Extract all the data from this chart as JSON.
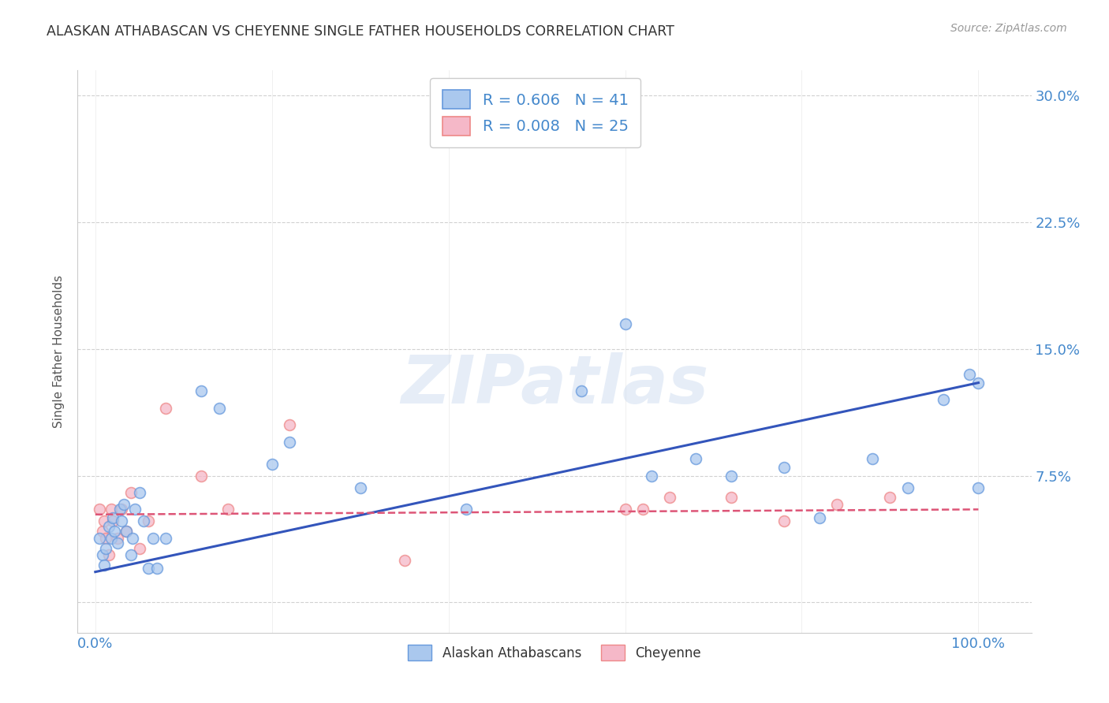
{
  "title": "ALASKAN ATHABASCAN VS CHEYENNE SINGLE FATHER HOUSEHOLDS CORRELATION CHART",
  "source": "Source: ZipAtlas.com",
  "ylabel": "Single Father Households",
  "yticks": [
    0.0,
    0.075,
    0.15,
    0.225,
    0.3
  ],
  "ytick_labels": [
    "",
    "7.5%",
    "15.0%",
    "22.5%",
    "30.0%"
  ],
  "xticks": [
    0.0,
    0.2,
    0.4,
    0.6,
    0.8,
    1.0
  ],
  "xtick_labels": [
    "0.0%",
    "",
    "",
    "",
    "",
    "100.0%"
  ],
  "xlim": [
    -0.02,
    1.06
  ],
  "ylim": [
    -0.018,
    0.315
  ],
  "legend_R1": "R = 0.606",
  "legend_N1": "N = 41",
  "legend_R2": "R = 0.008",
  "legend_N2": "N = 25",
  "blue_color": "#aac8ee",
  "pink_color": "#f5b8c8",
  "blue_edge_color": "#6699dd",
  "pink_edge_color": "#ee8888",
  "blue_line_color": "#3355bb",
  "pink_line_color": "#dd5577",
  "grid_color": "#cccccc",
  "background_color": "#ffffff",
  "title_color": "#333333",
  "axis_label_color": "#4488cc",
  "blue_scatter_x": [
    0.005,
    0.008,
    0.01,
    0.012,
    0.015,
    0.018,
    0.02,
    0.022,
    0.025,
    0.028,
    0.03,
    0.032,
    0.035,
    0.04,
    0.042,
    0.045,
    0.05,
    0.055,
    0.06,
    0.065,
    0.07,
    0.08,
    0.12,
    0.14,
    0.2,
    0.22,
    0.3,
    0.42,
    0.55,
    0.6,
    0.63,
    0.68,
    0.72,
    0.78,
    0.82,
    0.88,
    0.92,
    0.96,
    0.99,
    1.0,
    1.0
  ],
  "blue_scatter_y": [
    0.038,
    0.028,
    0.022,
    0.032,
    0.045,
    0.038,
    0.05,
    0.042,
    0.035,
    0.055,
    0.048,
    0.058,
    0.042,
    0.028,
    0.038,
    0.055,
    0.065,
    0.048,
    0.02,
    0.038,
    0.02,
    0.038,
    0.125,
    0.115,
    0.082,
    0.095,
    0.068,
    0.055,
    0.125,
    0.165,
    0.075,
    0.085,
    0.075,
    0.08,
    0.05,
    0.085,
    0.068,
    0.12,
    0.135,
    0.068,
    0.13
  ],
  "pink_scatter_x": [
    0.005,
    0.008,
    0.01,
    0.012,
    0.015,
    0.018,
    0.02,
    0.025,
    0.03,
    0.035,
    0.04,
    0.05,
    0.06,
    0.08,
    0.12,
    0.15,
    0.22,
    0.35,
    0.6,
    0.62,
    0.65,
    0.72,
    0.78,
    0.84,
    0.9
  ],
  "pink_scatter_y": [
    0.055,
    0.042,
    0.048,
    0.038,
    0.028,
    0.055,
    0.048,
    0.038,
    0.055,
    0.042,
    0.065,
    0.032,
    0.048,
    0.115,
    0.075,
    0.055,
    0.105,
    0.025,
    0.055,
    0.055,
    0.062,
    0.062,
    0.048,
    0.058,
    0.062
  ],
  "blue_line_x": [
    0.0,
    1.0
  ],
  "blue_line_y": [
    0.018,
    0.13
  ],
  "pink_line_y": [
    0.052,
    0.055
  ],
  "watermark_text": "ZIPatlas",
  "marker_size": 100,
  "legend_label1": "Alaskan Athabascans",
  "legend_label2": "Cheyenne"
}
